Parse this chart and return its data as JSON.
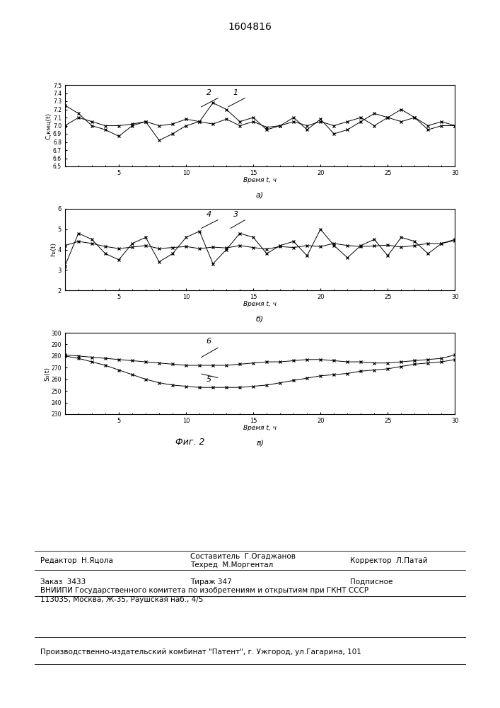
{
  "title": "1604816",
  "fig_label": "Фиг. 2",
  "xlabel": "Время t, ч",
  "subplot_labels": [
    "а)",
    "б)",
    "в)"
  ],
  "chart_a": {
    "ylabel": "C,кмц(t)",
    "ylim": [
      6.5,
      7.5
    ],
    "yticks": [
      6.5,
      6.6,
      6.7,
      6.8,
      6.9,
      7.0,
      7.1,
      7.2,
      7.3,
      7.4,
      7.5
    ],
    "xlim": [
      1,
      30
    ],
    "xticks": [
      5,
      10,
      15,
      20,
      25,
      30
    ],
    "curve1_x": [
      1,
      2,
      3,
      4,
      5,
      6,
      7,
      8,
      9,
      10,
      11,
      12,
      13,
      14,
      15,
      16,
      17,
      18,
      19,
      20,
      21,
      22,
      23,
      24,
      25,
      26,
      27,
      28,
      29,
      30
    ],
    "curve1_y": [
      7.0,
      7.1,
      7.05,
      7.0,
      7.0,
      7.02,
      7.05,
      7.0,
      7.02,
      7.08,
      7.05,
      7.02,
      7.08,
      7.0,
      7.05,
      6.98,
      7.0,
      7.05,
      7.0,
      7.05,
      7.0,
      7.05,
      7.1,
      7.0,
      7.1,
      7.05,
      7.1,
      7.0,
      7.05,
      7.0
    ],
    "curve2_x": [
      1,
      2,
      3,
      4,
      5,
      6,
      7,
      8,
      9,
      10,
      11,
      12,
      13,
      14,
      15,
      16,
      17,
      18,
      19,
      20,
      21,
      22,
      23,
      24,
      25,
      26,
      27,
      28,
      29,
      30
    ],
    "curve2_y": [
      7.25,
      7.15,
      7.0,
      6.95,
      6.87,
      7.0,
      7.05,
      6.82,
      6.9,
      7.0,
      7.05,
      7.28,
      7.2,
      7.05,
      7.1,
      6.95,
      7.0,
      7.1,
      6.95,
      7.08,
      6.9,
      6.95,
      7.05,
      7.15,
      7.1,
      7.2,
      7.1,
      6.95,
      7.0,
      7.0
    ]
  },
  "chart_b": {
    "ylabel": "h₂(t)",
    "ylim": [
      2,
      6
    ],
    "yticks": [
      2,
      3,
      4,
      5,
      6
    ],
    "xlim": [
      1,
      30
    ],
    "xticks": [
      5,
      10,
      15,
      20,
      25,
      30
    ],
    "curve3_x": [
      1,
      2,
      3,
      4,
      5,
      6,
      7,
      8,
      9,
      10,
      11,
      12,
      13,
      14,
      15,
      16,
      17,
      18,
      19,
      20,
      21,
      22,
      23,
      24,
      25,
      26,
      27,
      28,
      29,
      30
    ],
    "curve3_y": [
      4.2,
      4.4,
      4.3,
      4.15,
      4.05,
      4.12,
      4.2,
      4.05,
      4.1,
      4.15,
      4.05,
      4.12,
      4.08,
      4.2,
      4.1,
      4.02,
      4.15,
      4.1,
      4.2,
      4.15,
      4.3,
      4.2,
      4.15,
      4.18,
      4.22,
      4.12,
      4.2,
      4.3,
      4.3,
      4.45
    ],
    "curve4_x": [
      1,
      2,
      3,
      4,
      5,
      6,
      7,
      8,
      9,
      10,
      11,
      12,
      13,
      14,
      15,
      16,
      17,
      18,
      19,
      20,
      21,
      22,
      23,
      24,
      25,
      26,
      27,
      28,
      29,
      30
    ],
    "curve4_y": [
      3.2,
      4.8,
      4.5,
      3.8,
      3.5,
      4.3,
      4.6,
      3.4,
      3.8,
      4.6,
      4.9,
      3.3,
      4.0,
      4.8,
      4.6,
      3.8,
      4.2,
      4.4,
      3.7,
      5.0,
      4.2,
      3.6,
      4.2,
      4.5,
      3.7,
      4.6,
      4.4,
      3.8,
      4.3,
      4.5
    ]
  },
  "chart_c": {
    "ylabel": "S₃(t)",
    "ylim": [
      230,
      300
    ],
    "yticks": [
      230,
      240,
      250,
      260,
      270,
      280,
      290,
      300
    ],
    "xlim": [
      1,
      30
    ],
    "xticks": [
      5,
      10,
      15,
      20,
      25,
      30
    ],
    "curve5_x": [
      1,
      2,
      3,
      4,
      5,
      6,
      7,
      8,
      9,
      10,
      11,
      12,
      13,
      14,
      15,
      16,
      17,
      18,
      19,
      20,
      21,
      22,
      23,
      24,
      25,
      26,
      27,
      28,
      29,
      30
    ],
    "curve5_y": [
      280,
      278,
      275,
      272,
      268,
      264,
      260,
      257,
      255,
      254,
      253,
      253,
      253,
      253,
      254,
      255,
      257,
      259,
      261,
      263,
      264,
      265,
      267,
      268,
      269,
      271,
      273,
      274,
      275,
      277
    ],
    "curve6_x": [
      1,
      2,
      3,
      4,
      5,
      6,
      7,
      8,
      9,
      10,
      11,
      12,
      13,
      14,
      15,
      16,
      17,
      18,
      19,
      20,
      21,
      22,
      23,
      24,
      25,
      26,
      27,
      28,
      29,
      30
    ],
    "curve6_y": [
      281,
      280,
      279,
      278,
      277,
      276,
      275,
      274,
      273,
      272,
      272,
      272,
      272,
      273,
      274,
      275,
      275,
      276,
      277,
      277,
      276,
      275,
      275,
      274,
      274,
      275,
      276,
      277,
      278,
      281
    ]
  }
}
